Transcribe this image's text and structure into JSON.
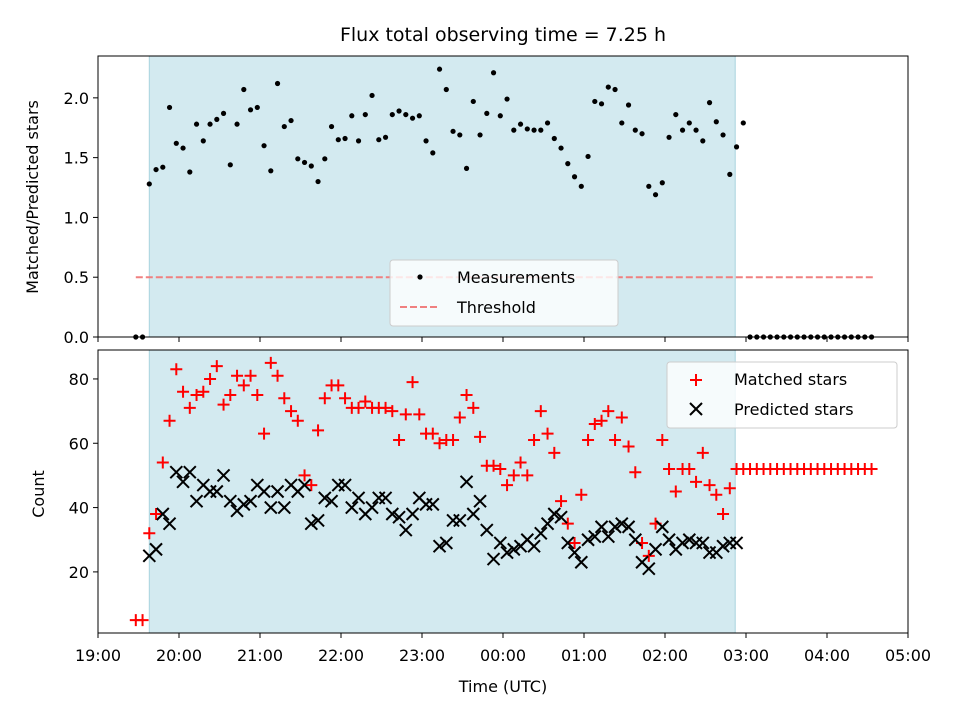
{
  "figure": {
    "title": "Flux total observing time = 7.25 h",
    "xlabel": "Time (UTC)",
    "shade_color": "#d3eaf0",
    "shade_edge": "#a9d3de"
  },
  "chart_data": [
    {
      "type": "scatter",
      "panel": "top",
      "ylabel": "Matched/Predicted stars",
      "xlim": [
        "19:00",
        "05:00"
      ],
      "ylim": [
        0,
        2.35
      ],
      "yticks": [
        "0.0",
        "0.5",
        "1.0",
        "1.5",
        "2.0"
      ],
      "shaded_interval": [
        "19:38",
        "02:52"
      ],
      "legend": {
        "position": "lower-center",
        "entries": [
          "Measurements",
          "Threshold"
        ]
      },
      "threshold": {
        "name": "Threshold",
        "value": 0.5,
        "from": "19:28",
        "to": "04:35",
        "color": "#f08080",
        "style": "dashed"
      },
      "series": [
        {
          "name": "Measurements",
          "marker": "dot",
          "color": "#000000",
          "x": [
            "19:28",
            "19:33",
            "19:38",
            "19:43",
            "19:48",
            "19:53",
            "19:58",
            "20:03",
            "20:08",
            "20:13",
            "20:18",
            "20:23",
            "20:28",
            "20:33",
            "20:38",
            "20:43",
            "20:48",
            "20:53",
            "20:58",
            "21:03",
            "21:08",
            "21:13",
            "21:18",
            "21:23",
            "21:28",
            "21:33",
            "21:38",
            "21:43",
            "21:48",
            "21:53",
            "21:58",
            "22:03",
            "22:08",
            "22:13",
            "22:18",
            "22:23",
            "22:28",
            "22:33",
            "22:38",
            "22:43",
            "22:48",
            "22:53",
            "22:58",
            "23:03",
            "23:08",
            "23:13",
            "23:18",
            "23:23",
            "23:28",
            "23:33",
            "23:38",
            "23:43",
            "23:48",
            "23:53",
            "23:58",
            "00:03",
            "00:08",
            "00:13",
            "00:18",
            "00:23",
            "00:28",
            "00:33",
            "00:38",
            "00:43",
            "00:48",
            "00:53",
            "00:58",
            "01:03",
            "01:08",
            "01:13",
            "01:18",
            "01:23",
            "01:28",
            "01:33",
            "01:38",
            "01:43",
            "01:48",
            "01:53",
            "01:58",
            "02:03",
            "02:08",
            "02:13",
            "02:18",
            "02:23",
            "02:28",
            "02:33",
            "02:38",
            "02:43",
            "02:48",
            "02:53",
            "02:58",
            "03:03",
            "03:08",
            "03:13",
            "03:18",
            "03:23",
            "03:28",
            "03:33",
            "03:38",
            "03:43",
            "03:48",
            "03:53",
            "03:58",
            "04:03",
            "04:08",
            "04:13",
            "04:18",
            "04:23",
            "04:28",
            "04:33"
          ],
          "y": [
            0,
            0,
            1.28,
            1.4,
            1.42,
            1.92,
            1.62,
            1.58,
            1.38,
            1.78,
            1.64,
            1.78,
            1.82,
            1.87,
            1.44,
            1.78,
            2.07,
            1.9,
            1.92,
            1.6,
            1.39,
            2.12,
            1.76,
            1.81,
            1.49,
            1.46,
            1.43,
            1.3,
            1.49,
            1.76,
            1.65,
            1.66,
            1.85,
            1.64,
            1.86,
            2.02,
            1.65,
            1.67,
            1.86,
            1.89,
            1.86,
            1.83,
            1.85,
            1.64,
            1.54,
            2.24,
            2.07,
            1.72,
            1.69,
            1.41,
            1.97,
            1.69,
            1.87,
            2.21,
            1.85,
            1.99,
            1.73,
            1.78,
            1.74,
            1.73,
            1.73,
            1.79,
            1.66,
            1.58,
            1.45,
            1.34,
            1.26,
            1.51,
            1.97,
            1.95,
            2.09,
            2.07,
            1.79,
            1.94,
            1.73,
            1.7,
            1.26,
            1.19,
            1.29,
            1.67,
            1.86,
            1.73,
            1.79,
            1.73,
            1.64,
            1.96,
            1.8,
            1.69,
            1.36,
            1.59,
            1.79,
            0,
            0,
            0,
            0,
            0,
            0,
            0,
            0,
            0,
            0,
            0,
            0,
            0,
            0,
            0,
            0,
            0,
            0,
            0
          ]
        }
      ]
    },
    {
      "type": "scatter",
      "panel": "bottom",
      "ylabel": "Count",
      "xlim": [
        "19:00",
        "05:00"
      ],
      "ylim": [
        1,
        89
      ],
      "yticks": [
        "20",
        "40",
        "60",
        "80"
      ],
      "xticks": [
        "19:00",
        "20:00",
        "21:00",
        "22:00",
        "23:00",
        "00:00",
        "01:00",
        "02:00",
        "03:00",
        "04:00",
        "05:00"
      ],
      "shaded_interval": [
        "19:38",
        "02:52"
      ],
      "legend": {
        "position": "top-right",
        "entries": [
          "Matched stars",
          "Predicted stars"
        ]
      },
      "series": [
        {
          "name": "Matched stars",
          "marker": "plus",
          "color": "#ff0000",
          "x": [
            "19:28",
            "19:33",
            "19:38",
            "19:43",
            "19:48",
            "19:53",
            "19:58",
            "20:03",
            "20:08",
            "20:13",
            "20:18",
            "20:23",
            "20:28",
            "20:33",
            "20:38",
            "20:43",
            "20:48",
            "20:53",
            "20:58",
            "21:03",
            "21:08",
            "21:13",
            "21:18",
            "21:23",
            "21:28",
            "21:33",
            "21:38",
            "21:43",
            "21:48",
            "21:53",
            "21:58",
            "22:03",
            "22:08",
            "22:13",
            "22:18",
            "22:23",
            "22:28",
            "22:33",
            "22:38",
            "22:43",
            "22:48",
            "22:53",
            "22:58",
            "23:03",
            "23:08",
            "23:13",
            "23:18",
            "23:23",
            "23:28",
            "23:33",
            "23:38",
            "23:43",
            "23:48",
            "23:53",
            "23:58",
            "00:03",
            "00:08",
            "00:13",
            "00:18",
            "00:23",
            "00:28",
            "00:33",
            "00:38",
            "00:43",
            "00:48",
            "00:53",
            "00:58",
            "01:03",
            "01:08",
            "01:13",
            "01:18",
            "01:23",
            "01:28",
            "01:33",
            "01:38",
            "01:43",
            "01:48",
            "01:53",
            "01:58",
            "02:03",
            "02:08",
            "02:13",
            "02:18",
            "02:23",
            "02:28",
            "02:33",
            "02:38",
            "02:43",
            "02:48",
            "02:53",
            "02:58",
            "03:03",
            "03:08",
            "03:13",
            "03:18",
            "03:23",
            "03:28",
            "03:33",
            "03:38",
            "03:43",
            "03:48",
            "03:53",
            "03:58",
            "04:03",
            "04:08",
            "04:13",
            "04:18",
            "04:23",
            "04:28",
            "04:33"
          ],
          "y": [
            5,
            5,
            32,
            38,
            54,
            67,
            83,
            76,
            71,
            75,
            76,
            80,
            84,
            72,
            75,
            81,
            78,
            81,
            75,
            63,
            85,
            81,
            74,
            70,
            67,
            50,
            47,
            64,
            74,
            78,
            78,
            74,
            71,
            71,
            73,
            71,
            71,
            71,
            70,
            61,
            69,
            79,
            69,
            63,
            63,
            60,
            61,
            61,
            68,
            75,
            71,
            62,
            53,
            53,
            52,
            47,
            50,
            54,
            50,
            61,
            70,
            63,
            57,
            42,
            35,
            29,
            44,
            61,
            66,
            67,
            70,
            61,
            68,
            59,
            51,
            29,
            25,
            35,
            61,
            52,
            45,
            52,
            52,
            48,
            57,
            47,
            44,
            38,
            46,
            52,
            52,
            52,
            52,
            52,
            52,
            52,
            52,
            52,
            52,
            52,
            52,
            52,
            52,
            52,
            52,
            52,
            52,
            52,
            52,
            52
          ]
        },
        {
          "name": "Predicted stars",
          "marker": "x",
          "color": "#000000",
          "x": [
            "19:38",
            "19:43",
            "19:48",
            "19:53",
            "19:58",
            "20:03",
            "20:08",
            "20:13",
            "20:18",
            "20:23",
            "20:28",
            "20:33",
            "20:38",
            "20:43",
            "20:48",
            "20:53",
            "20:58",
            "21:03",
            "21:08",
            "21:13",
            "21:18",
            "21:23",
            "21:28",
            "21:33",
            "21:38",
            "21:43",
            "21:48",
            "21:53",
            "21:58",
            "22:03",
            "22:08",
            "22:13",
            "22:18",
            "22:23",
            "22:28",
            "22:33",
            "22:38",
            "22:43",
            "22:48",
            "22:53",
            "22:58",
            "23:03",
            "23:08",
            "23:13",
            "23:18",
            "23:23",
            "23:28",
            "23:33",
            "23:38",
            "23:43",
            "23:48",
            "23:53",
            "23:58",
            "00:03",
            "00:08",
            "00:13",
            "00:18",
            "00:23",
            "00:28",
            "00:33",
            "00:38",
            "00:43",
            "00:48",
            "00:53",
            "00:58",
            "01:03",
            "01:08",
            "01:13",
            "01:18",
            "01:23",
            "01:28",
            "01:33",
            "01:38",
            "01:43",
            "01:48",
            "01:53",
            "01:58",
            "02:03",
            "02:08",
            "02:13",
            "02:18",
            "02:23",
            "02:28",
            "02:33",
            "02:38",
            "02:43",
            "02:48",
            "02:53"
          ],
          "y": [
            25,
            27,
            38,
            35,
            51,
            48,
            51,
            42,
            47,
            45,
            45,
            50,
            42,
            39,
            41,
            42,
            47,
            45,
            40,
            45,
            40,
            47,
            45,
            47,
            35,
            36,
            43,
            42,
            47,
            47,
            40,
            43,
            38,
            40,
            43,
            43,
            38,
            37,
            33,
            38,
            43,
            41,
            41,
            28,
            29,
            36,
            36,
            48,
            38,
            42,
            33,
            24,
            29,
            26,
            27,
            28,
            30,
            28,
            32,
            35,
            38,
            37,
            29,
            26,
            23,
            30,
            31,
            34,
            31,
            34,
            35,
            34,
            30,
            23,
            21,
            27,
            34,
            30,
            27,
            29,
            30,
            29,
            29,
            26,
            26,
            28,
            29,
            29
          ]
        }
      ]
    }
  ]
}
